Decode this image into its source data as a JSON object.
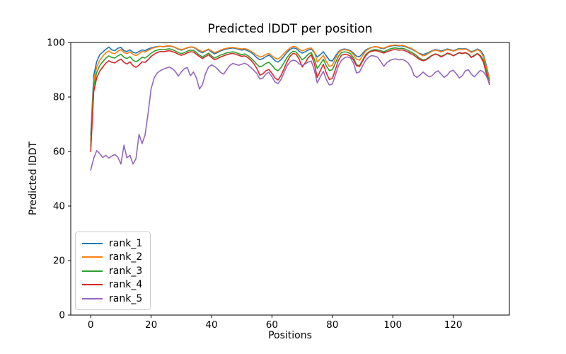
{
  "chart_data": {
    "type": "line",
    "title": "Predicted lDDT per position",
    "xlabel": "Positions",
    "ylabel": "Predicted lDDT",
    "xlim": [
      -6.6,
      138.6
    ],
    "ylim": [
      0,
      100
    ],
    "xticks": [
      0,
      20,
      40,
      60,
      80,
      100,
      120
    ],
    "yticks": [
      0,
      20,
      40,
      60,
      80,
      100
    ],
    "grid": false,
    "legend_position": "lower left",
    "axis_color": "#000000",
    "background_color": "#ffffff",
    "x": [
      0,
      1,
      2,
      3,
      4,
      5,
      6,
      7,
      8,
      9,
      10,
      11,
      12,
      13,
      14,
      15,
      16,
      17,
      18,
      19,
      20,
      21,
      22,
      23,
      24,
      25,
      26,
      27,
      28,
      29,
      30,
      31,
      32,
      33,
      34,
      35,
      36,
      37,
      38,
      39,
      40,
      41,
      42,
      43,
      44,
      45,
      46,
      47,
      48,
      49,
      50,
      51,
      52,
      53,
      54,
      55,
      56,
      57,
      58,
      59,
      60,
      61,
      62,
      63,
      64,
      65,
      66,
      67,
      68,
      69,
      70,
      71,
      72,
      73,
      74,
      75,
      76,
      77,
      78,
      79,
      80,
      81,
      82,
      83,
      84,
      85,
      86,
      87,
      88,
      89,
      90,
      91,
      92,
      93,
      94,
      95,
      96,
      97,
      98,
      99,
      100,
      101,
      102,
      103,
      104,
      105,
      106,
      107,
      108,
      109,
      110,
      111,
      112,
      113,
      114,
      115,
      116,
      117,
      118,
      119,
      120,
      121,
      122,
      123,
      124,
      125,
      126,
      127,
      128,
      129,
      130,
      131,
      132
    ],
    "series": [
      {
        "name": "rank_1",
        "color": "#1f77b4",
        "values": [
          66,
          88,
          93,
          95.5,
          96.5,
          97.5,
          98.3,
          97.3,
          97,
          97.9,
          98.2,
          97,
          96.7,
          97.3,
          96.4,
          96.1,
          96.7,
          97.3,
          97,
          97.6,
          98,
          98.3,
          98.5,
          98.6,
          98.4,
          98.6,
          98.7,
          98.5,
          98.1,
          97.5,
          97.2,
          97.6,
          98,
          98.3,
          98.2,
          97.6,
          96.7,
          96.2,
          96.9,
          97.4,
          96.5,
          95.8,
          96.3,
          96.9,
          97.3,
          97.6,
          97.8,
          98,
          97.8,
          97.5,
          97.2,
          97.4,
          97,
          96.4,
          95.5,
          94.4,
          93.7,
          94.1,
          94.8,
          95.4,
          94.5,
          93.3,
          92.8,
          93.7,
          95,
          96.4,
          97.4,
          98,
          97.8,
          96.8,
          96.1,
          96.6,
          97.2,
          97.6,
          96.3,
          94.7,
          95.5,
          96.6,
          95.1,
          93.5,
          93.2,
          95,
          96.6,
          97.4,
          97.6,
          97.4,
          97,
          96.1,
          95,
          94.8,
          96,
          97.2,
          97.8,
          98.2,
          98.4,
          98.3,
          97.9,
          97.7,
          98.2,
          98.6,
          98.8,
          98.9,
          98.7,
          98.8,
          98.5,
          98.1,
          97.7,
          97.1,
          96.5,
          95.9,
          95.6,
          95.9,
          96.4,
          97,
          97.4,
          97.2,
          96.8,
          97.2,
          97.6,
          97.4,
          97,
          97.4,
          97.8,
          97.6,
          97.8,
          97.3,
          96.6,
          97,
          97.6,
          97.1,
          95.5,
          91.5,
          86.6
        ]
      },
      {
        "name": "rank_2",
        "color": "#ff7f0e",
        "values": [
          64,
          86,
          91,
          93.5,
          95,
          96.2,
          96.9,
          96.1,
          95.9,
          96.8,
          97.4,
          96.3,
          95.9,
          96.6,
          95.6,
          95.2,
          95.9,
          96.7,
          96.5,
          97.1,
          97.7,
          98.1,
          98.4,
          98.6,
          98.5,
          98.7,
          98.8,
          98.6,
          98.2,
          97.7,
          97.4,
          97.7,
          98.1,
          98.4,
          98.3,
          97.8,
          97.1,
          96.6,
          97.1,
          97.6,
          96.9,
          96.3,
          96.7,
          97.2,
          97.6,
          97.9,
          98.1,
          98.2,
          98,
          97.8,
          97.6,
          97.8,
          97.4,
          96.8,
          96.1,
          95.3,
          94.7,
          95,
          95.6,
          96,
          95.1,
          94.3,
          93.9,
          94.8,
          96,
          97.1,
          98,
          98.6,
          98.4,
          97.5,
          96.9,
          97.4,
          97.8,
          98,
          96.6,
          92.8,
          94,
          95.3,
          93,
          91.2,
          91.6,
          94,
          96.2,
          97.2,
          97.4,
          97.2,
          96.7,
          95.6,
          93.9,
          93.5,
          95.2,
          96.8,
          97.6,
          98.2,
          98.5,
          98.4,
          98.1,
          97.9,
          98.4,
          98.8,
          99,
          99.1,
          98.9,
          99,
          98.7,
          98.3,
          97.9,
          97.3,
          96.5,
          95.7,
          95.1,
          95.4,
          96.1,
          96.8,
          97.2,
          97,
          96.5,
          97,
          97.4,
          97.2,
          96.8,
          97.2,
          97.6,
          97.4,
          97.6,
          97.1,
          96.3,
          96.8,
          97.4,
          96.7,
          94.8,
          90.8,
          86.2
        ]
      },
      {
        "name": "rank_3",
        "color": "#2ca02c",
        "values": [
          62,
          84,
          89,
          91.5,
          93,
          94.2,
          95.1,
          94.5,
          94.3,
          95.1,
          95.7,
          94.6,
          94.1,
          94.8,
          93.5,
          92.9,
          93.6,
          94.6,
          94.3,
          95.1,
          96.1,
          96.8,
          97.2,
          97.5,
          97.3,
          97.5,
          97.7,
          97.4,
          96.9,
          96.3,
          95.9,
          96.3,
          96.8,
          97.2,
          97.1,
          96.3,
          95.4,
          94.7,
          95.4,
          96.1,
          95.1,
          94.3,
          94.8,
          95.4,
          95.8,
          96.2,
          96.4,
          96.6,
          96.3,
          95.9,
          95.5,
          95.8,
          95.2,
          94.3,
          93.2,
          92,
          91,
          91.5,
          92.3,
          92.8,
          91.6,
          90.2,
          89.6,
          90.8,
          92.6,
          94.5,
          95.9,
          96.8,
          96.5,
          95.2,
          93.6,
          94.5,
          95.7,
          96.3,
          93.9,
          90.5,
          92,
          93.9,
          91.4,
          89.7,
          90,
          92.4,
          94.9,
          96.3,
          96.6,
          96.4,
          95.9,
          94.4,
          91.8,
          91.5,
          93.5,
          95.5,
          96.5,
          97.1,
          97.4,
          97.3,
          97,
          96.6,
          97.1,
          97.6,
          97.9,
          98,
          97.8,
          97.9,
          97.6,
          97.1,
          96.5,
          95.9,
          95.1,
          94.1,
          93.6,
          93.8,
          94.6,
          95.3,
          95.8,
          95.5,
          94.9,
          95.4,
          95.9,
          95.7,
          95.2,
          95.7,
          96.2,
          95.9,
          96.2,
          95.7,
          94.7,
          95.3,
          96,
          95.2,
          93.5,
          89.5,
          85.3
        ]
      },
      {
        "name": "rank_4",
        "color": "#d62728",
        "values": [
          60,
          82,
          87,
          89.5,
          91,
          92.4,
          93.3,
          92.7,
          92.5,
          93.3,
          93.9,
          92.7,
          92.1,
          92.9,
          91.5,
          90.9,
          91.7,
          92.9,
          92.7,
          93.7,
          94.9,
          95.7,
          96.3,
          96.7,
          96.6,
          96.8,
          97,
          96.7,
          96.3,
          95.7,
          95.3,
          95.7,
          96.2,
          96.6,
          96.5,
          95.7,
          94.8,
          94.1,
          94.8,
          95.5,
          94.5,
          93.7,
          94.1,
          94.7,
          95.1,
          95.5,
          95.8,
          96,
          95.7,
          95.3,
          94.9,
          95.1,
          94.5,
          93.5,
          92.2,
          90.5,
          88,
          88.5,
          89.6,
          90.1,
          88.7,
          87,
          86.2,
          87.9,
          90.4,
          92.9,
          94.9,
          96,
          95.7,
          93.9,
          91,
          92.5,
          94.4,
          95.5,
          92.3,
          87.2,
          89.6,
          92,
          88.8,
          86.4,
          86.8,
          90,
          93.4,
          95.3,
          95.7,
          95.5,
          95,
          93.6,
          91.5,
          91.2,
          93.2,
          95.1,
          96.3,
          96.8,
          97,
          96.9,
          96.5,
          96.1,
          96.6,
          97,
          97.3,
          97.4,
          97.2,
          97.3,
          97,
          96.5,
          95.9,
          95.3,
          94.5,
          93.7,
          93.3,
          93.6,
          94.4,
          95.2,
          95.7,
          95.4,
          94.7,
          95.3,
          96.1,
          95.8,
          95.1,
          95.7,
          96.3,
          96,
          96.3,
          95.8,
          94.5,
          95.1,
          95.9,
          94.9,
          92.8,
          88.5,
          84.6
        ]
      },
      {
        "name": "rank_5",
        "color": "#9467bd",
        "values": [
          53.2,
          57.5,
          60.3,
          59.2,
          57.8,
          58.6,
          57.6,
          58.3,
          58.9,
          57.9,
          55.4,
          62.3,
          57.7,
          58.6,
          55.4,
          57.4,
          66.3,
          62.9,
          66,
          74,
          83,
          87,
          88.8,
          89.6,
          90.2,
          90.6,
          91,
          90.4,
          89.4,
          87.7,
          89.2,
          90.4,
          90.8,
          87.8,
          89.2,
          87,
          82.9,
          84.6,
          88.5,
          91,
          91.8,
          91.2,
          90.3,
          89,
          88.4,
          90,
          91.5,
          92.3,
          92,
          91.6,
          92,
          92.4,
          91.8,
          90.8,
          89.8,
          88.6,
          86.6,
          87,
          88.4,
          89.1,
          87.4,
          85.5,
          84.9,
          86.4,
          89,
          91.4,
          92.9,
          93.5,
          93.2,
          92.2,
          91.6,
          92.1,
          92.8,
          93.2,
          90,
          85.2,
          87.4,
          89.4,
          86.4,
          84.4,
          84.8,
          88,
          91.4,
          93.4,
          94.4,
          94.7,
          94.3,
          92.4,
          88.8,
          89.2,
          91.4,
          93.4,
          94.6,
          95.2,
          95,
          94.6,
          93,
          91.3,
          92.5,
          93.4,
          93.8,
          94,
          93.6,
          93.8,
          93.4,
          92.6,
          91,
          88,
          87.2,
          88,
          89.2,
          88.2,
          87.4,
          87.8,
          89,
          89.6,
          88.4,
          87.2,
          88,
          89.4,
          89.8,
          88.6,
          87,
          87.8,
          89.6,
          90,
          88.4,
          87.4,
          88.6,
          89.8,
          89.2,
          87.6,
          85
        ]
      }
    ]
  }
}
